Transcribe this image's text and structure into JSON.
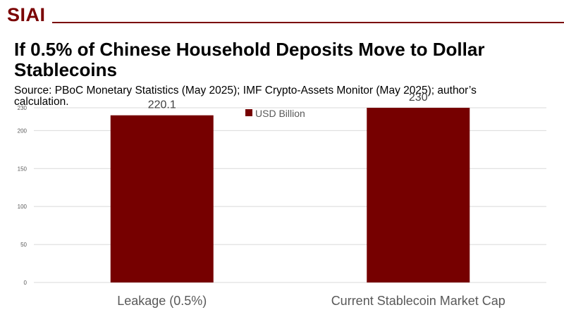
{
  "brand": {
    "logo_text": "SIAI"
  },
  "colors": {
    "brand": "#7a0000",
    "bar": "#760000",
    "grid": "#d9d9d9",
    "axis_text": "#595959"
  },
  "title": "If 0.5% of Chinese Household Deposits Move to Dollar Stablecoins",
  "source": "Source: PBoC Monetary Statistics (May 2025); IMF Crypto-Assets Monitor (May 2025); author’s calculation.",
  "chart_data": {
    "type": "bar",
    "categories": [
      "Leakage (0.5%)",
      "Current Stablecoin Market Cap"
    ],
    "series": [
      {
        "name": "USD Billion",
        "values": [
          220.1,
          230
        ]
      }
    ],
    "data_labels": [
      "220.1",
      "230"
    ],
    "yticks": [
      "0",
      "50",
      "100",
      "150",
      "200",
      "230"
    ],
    "ytick_values": [
      0,
      50,
      100,
      150,
      200,
      230
    ],
    "ylim": [
      0,
      230
    ],
    "grid": true,
    "legend": "top-center"
  }
}
